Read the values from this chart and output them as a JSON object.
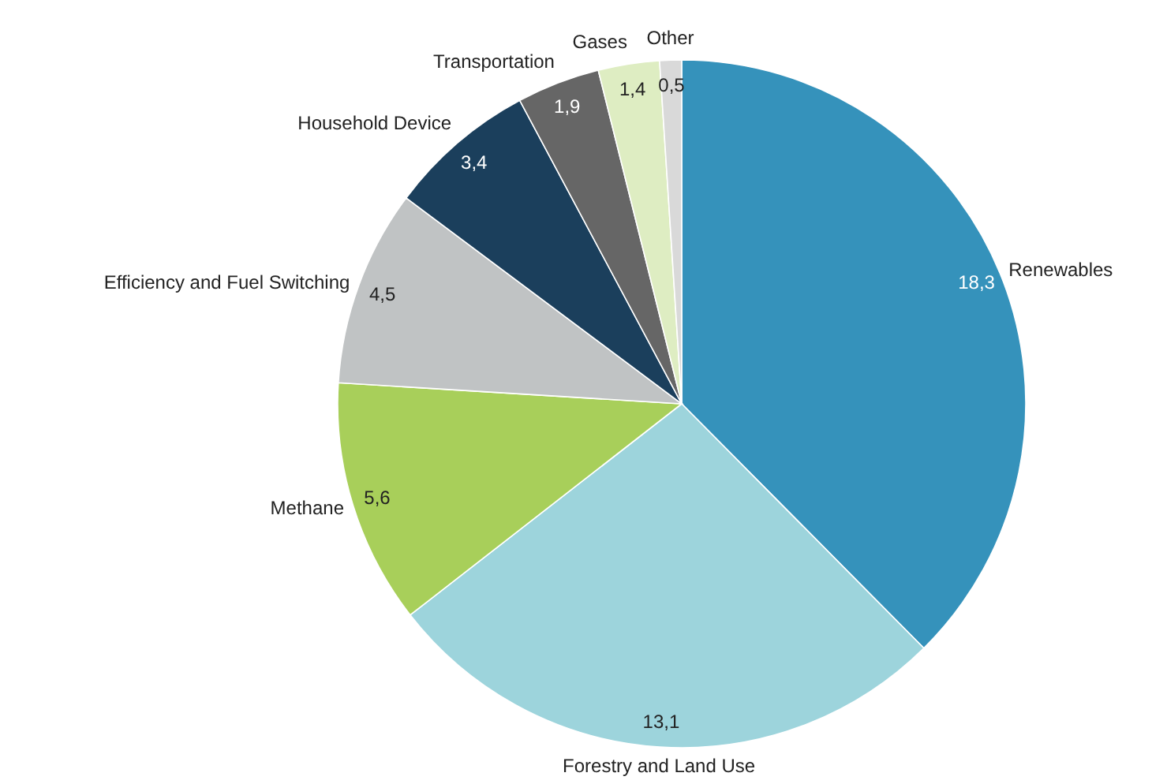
{
  "chart_data": {
    "type": "pie",
    "categories": [
      "Renewables",
      "Forestry and Land Use",
      "Methane",
      "Efficiency and Fuel Switching",
      "Household Device",
      "Transportation",
      "Gases",
      "Other"
    ],
    "values": [
      18.3,
      13.1,
      5.6,
      4.5,
      3.4,
      1.9,
      1.4,
      0.5
    ],
    "value_labels": [
      "18,3",
      "13,1",
      "5,6",
      "4,5",
      "3,4",
      "1,9",
      "1,4",
      "0,5"
    ],
    "colors": [
      "#3592bb",
      "#9dd4dc",
      "#a8cf5a",
      "#c0c3c4",
      "#1b3f5c",
      "#666666",
      "#deedc2",
      "#d9d9d9"
    ],
    "legend": false
  }
}
